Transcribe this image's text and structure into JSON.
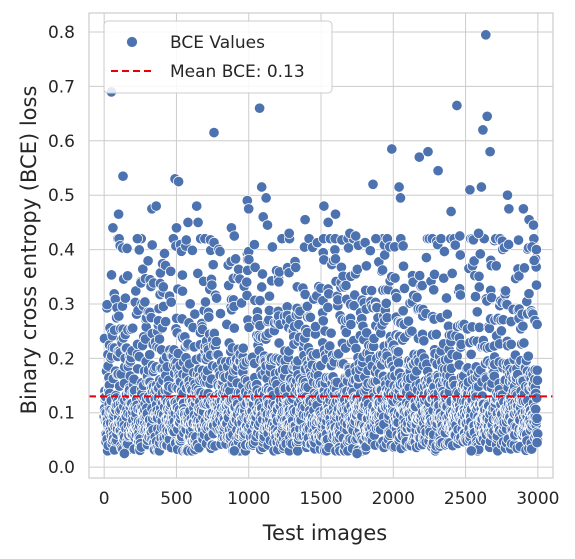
{
  "chart_data": {
    "type": "scatter",
    "title": "",
    "xlabel": "Test images",
    "ylabel": "Binary cross entropy (BCE) loss",
    "xlim": [
      -105,
      3105
    ],
    "ylim": [
      -0.02,
      0.835
    ],
    "xticks": [
      0,
      500,
      1000,
      1500,
      2000,
      2500,
      3000
    ],
    "yticks": [
      0.0,
      0.1,
      0.2,
      0.3,
      0.4,
      0.5,
      0.6,
      0.7,
      0.8
    ],
    "grid": true,
    "legend_position": "top-left",
    "marker_color": "#4c72b0",
    "mean_line_color": "#e8000b",
    "series": [
      {
        "name": "BCE Values",
        "kind": "scatter",
        "x_range": [
          0,
          2999
        ],
        "n_points": 3000,
        "bulk_range": [
          0.03,
          0.3
        ],
        "median": 0.11,
        "highlighted_points": [
          {
            "x": 50,
            "y": 0.69
          },
          {
            "x": 130,
            "y": 0.535
          },
          {
            "x": 60,
            "y": 0.44
          },
          {
            "x": 100,
            "y": 0.465
          },
          {
            "x": 230,
            "y": 0.42
          },
          {
            "x": 330,
            "y": 0.475
          },
          {
            "x": 360,
            "y": 0.48
          },
          {
            "x": 490,
            "y": 0.53
          },
          {
            "x": 515,
            "y": 0.525
          },
          {
            "x": 500,
            "y": 0.44
          },
          {
            "x": 580,
            "y": 0.45
          },
          {
            "x": 640,
            "y": 0.48
          },
          {
            "x": 650,
            "y": 0.45
          },
          {
            "x": 760,
            "y": 0.615
          },
          {
            "x": 880,
            "y": 0.44
          },
          {
            "x": 900,
            "y": 0.425
          },
          {
            "x": 990,
            "y": 0.49
          },
          {
            "x": 1000,
            "y": 0.475
          },
          {
            "x": 1075,
            "y": 0.66
          },
          {
            "x": 1090,
            "y": 0.515
          },
          {
            "x": 1120,
            "y": 0.495
          },
          {
            "x": 1100,
            "y": 0.46
          },
          {
            "x": 1130,
            "y": 0.445
          },
          {
            "x": 1280,
            "y": 0.43
          },
          {
            "x": 1390,
            "y": 0.455
          },
          {
            "x": 1520,
            "y": 0.48
          },
          {
            "x": 1550,
            "y": 0.45
          },
          {
            "x": 1600,
            "y": 0.465
          },
          {
            "x": 1700,
            "y": 0.43
          },
          {
            "x": 1740,
            "y": 0.425
          },
          {
            "x": 1860,
            "y": 0.52
          },
          {
            "x": 1880,
            "y": 0.42
          },
          {
            "x": 1990,
            "y": 0.585
          },
          {
            "x": 2040,
            "y": 0.515
          },
          {
            "x": 2050,
            "y": 0.495
          },
          {
            "x": 2180,
            "y": 0.57
          },
          {
            "x": 2240,
            "y": 0.58
          },
          {
            "x": 2310,
            "y": 0.545
          },
          {
            "x": 2400,
            "y": 0.47
          },
          {
            "x": 2440,
            "y": 0.665
          },
          {
            "x": 2460,
            "y": 0.425
          },
          {
            "x": 2530,
            "y": 0.51
          },
          {
            "x": 2590,
            "y": 0.43
          },
          {
            "x": 2610,
            "y": 0.515
          },
          {
            "x": 2620,
            "y": 0.62
          },
          {
            "x": 2640,
            "y": 0.795
          },
          {
            "x": 2650,
            "y": 0.645
          },
          {
            "x": 2670,
            "y": 0.58
          },
          {
            "x": 2790,
            "y": 0.5
          },
          {
            "x": 2800,
            "y": 0.475
          },
          {
            "x": 2900,
            "y": 0.475
          },
          {
            "x": 2940,
            "y": 0.455
          },
          {
            "x": 2970,
            "y": 0.445
          },
          {
            "x": 2960,
            "y": 0.405
          },
          {
            "x": 2990,
            "y": 0.4
          },
          {
            "x": 2975,
            "y": 0.38
          },
          {
            "x": 2995,
            "y": 0.045
          },
          {
            "x": 140,
            "y": 0.025
          },
          {
            "x": 900,
            "y": 0.03
          },
          {
            "x": 1750,
            "y": 0.025
          },
          {
            "x": 2540,
            "y": 0.03
          }
        ]
      },
      {
        "name": "Mean BCE: 0.13",
        "kind": "hline",
        "y": 0.13
      }
    ]
  }
}
